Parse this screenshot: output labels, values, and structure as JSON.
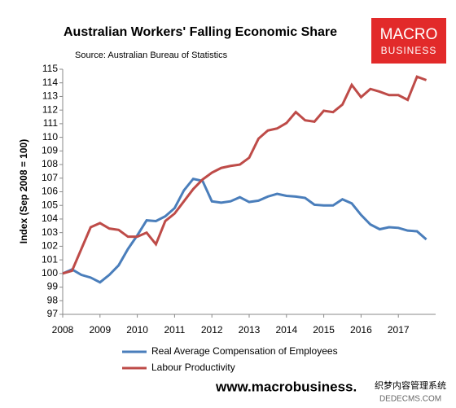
{
  "chart_data": {
    "type": "line",
    "title": "Australian Workers' Falling Economic Share",
    "subtitle": "Source: Australian Bureau of Statistics",
    "y_label": "Index (Sep 2008 = 100)",
    "logo": [
      "MACRO",
      "BUSINESS"
    ],
    "footer": "www.macrobusiness.",
    "watermark": [
      "织梦内容管理系统",
      "DEDECMS.COM"
    ],
    "x": [
      2008,
      2008.25,
      2008.5,
      2008.75,
      2009,
      2009.25,
      2009.5,
      2009.75,
      2010,
      2010.25,
      2010.5,
      2010.75,
      2011,
      2011.25,
      2011.5,
      2011.75,
      2012,
      2012.25,
      2012.5,
      2012.75,
      2013,
      2013.25,
      2013.5,
      2013.75,
      2014,
      2014.25,
      2014.5,
      2014.75,
      2015,
      2015.25,
      2015.5,
      2015.75,
      2016,
      2016.25,
      2016.5,
      2016.75,
      2017,
      2017.25,
      2017.5,
      2017.75
    ],
    "series": [
      {
        "name": "Real Average Compensation of Employees",
        "color": "#4a7ebb",
        "values": [
          100,
          100.3,
          99.9,
          99.7,
          99.35,
          99.9,
          100.6,
          101.8,
          102.8,
          103.9,
          103.85,
          104.2,
          104.8,
          106.1,
          106.95,
          106.8,
          105.3,
          105.2,
          105.3,
          105.6,
          105.25,
          105.35,
          105.65,
          105.85,
          105.7,
          105.65,
          105.55,
          105.05,
          105.0,
          105.0,
          105.45,
          105.15,
          104.3,
          103.6,
          103.25,
          103.4,
          103.35,
          103.15,
          103.1,
          102.5
        ]
      },
      {
        "name": "Labour Productivity",
        "color": "#be4b48",
        "values": [
          100,
          100.2,
          101.8,
          103.4,
          103.7,
          103.3,
          103.2,
          102.7,
          102.7,
          103.0,
          102.15,
          103.85,
          104.4,
          105.3,
          106.2,
          106.9,
          107.4,
          107.75,
          107.9,
          108.0,
          108.5,
          109.9,
          110.5,
          110.65,
          111.05,
          111.85,
          111.25,
          111.15,
          111.95,
          111.85,
          112.4,
          113.85,
          112.95,
          113.55,
          113.35,
          113.1,
          113.1,
          112.75,
          114.45,
          114.2
        ]
      }
    ],
    "xlim": [
      2008,
      2018
    ],
    "xticks": [
      2008,
      2009,
      2010,
      2011,
      2012,
      2013,
      2014,
      2015,
      2016,
      2017
    ],
    "ylim": [
      97,
      115
    ],
    "yticks": [
      97,
      98,
      99,
      100,
      101,
      102,
      103,
      104,
      105,
      106,
      107,
      108,
      109,
      110,
      111,
      112,
      113,
      114,
      115
    ],
    "grid": false
  }
}
